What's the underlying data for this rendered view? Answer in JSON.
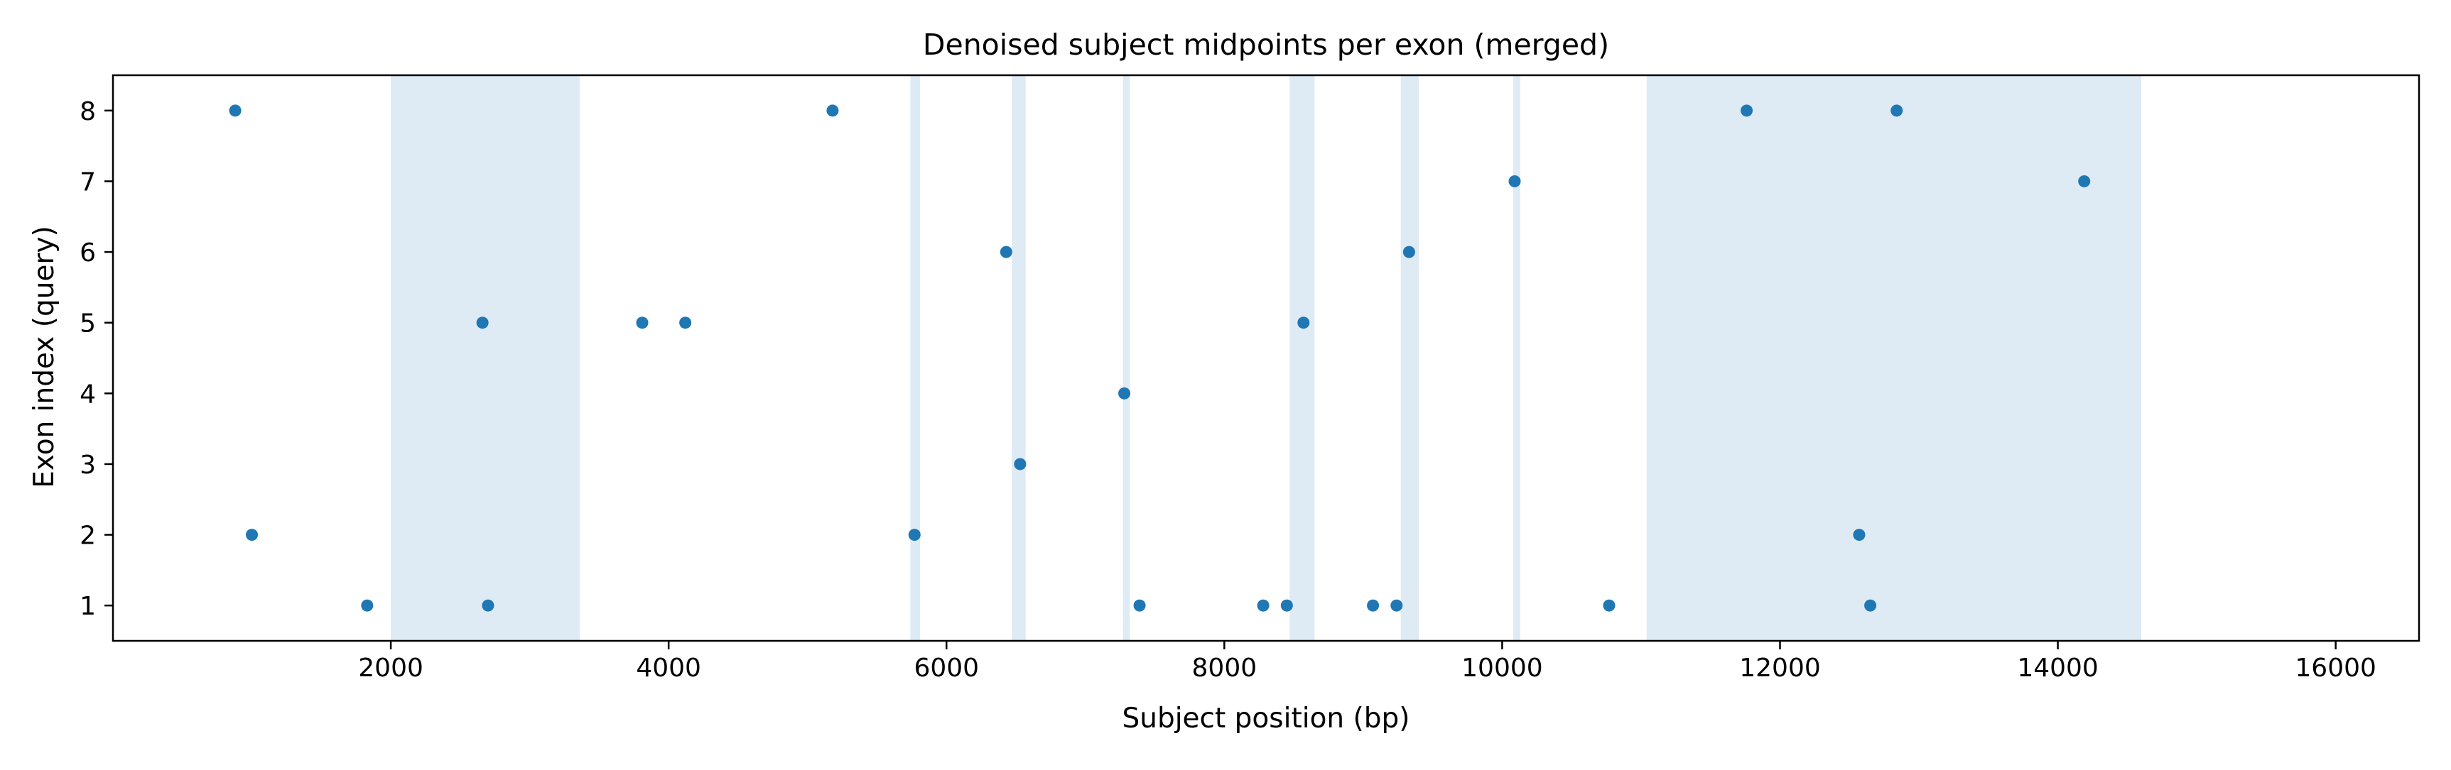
{
  "chart_data": {
    "type": "scatter",
    "title": "Denoised subject midpoints per exon (merged)",
    "xlabel": "Subject position (bp)",
    "ylabel": "Exon index (query)",
    "xlim": [
      0,
      16600
    ],
    "ylim": [
      0.5,
      8.5
    ],
    "xticks": [
      2000,
      4000,
      6000,
      8000,
      10000,
      12000,
      14000,
      16000
    ],
    "yticks": [
      1,
      2,
      3,
      4,
      5,
      6,
      7,
      8
    ],
    "xtick_labels": [
      "2000",
      "4000",
      "6000",
      "8000",
      "10000",
      "12000",
      "14000",
      "16000"
    ],
    "ytick_labels": [
      "1",
      "2",
      "3",
      "4",
      "5",
      "6",
      "7",
      "8"
    ],
    "grid": false,
    "legend": "none",
    "point_color": "#1f77b4",
    "band_color": "#deebf5",
    "shaded_regions": [
      {
        "x0": 2000,
        "x1": 3360
      },
      {
        "x0": 5740,
        "x1": 5810
      },
      {
        "x0": 6470,
        "x1": 6570
      },
      {
        "x0": 7270,
        "x1": 7320
      },
      {
        "x0": 8470,
        "x1": 8650
      },
      {
        "x0": 9270,
        "x1": 9400
      },
      {
        "x0": 10080,
        "x1": 10130
      },
      {
        "x0": 11040,
        "x1": 14600
      }
    ],
    "points": [
      {
        "x": 880,
        "y": 8
      },
      {
        "x": 5180,
        "y": 8
      },
      {
        "x": 11760,
        "y": 8
      },
      {
        "x": 12840,
        "y": 8
      },
      {
        "x": 10090,
        "y": 7
      },
      {
        "x": 14190,
        "y": 7
      },
      {
        "x": 6430,
        "y": 6
      },
      {
        "x": 9330,
        "y": 6
      },
      {
        "x": 2660,
        "y": 5
      },
      {
        "x": 3810,
        "y": 5
      },
      {
        "x": 4120,
        "y": 5
      },
      {
        "x": 8570,
        "y": 5
      },
      {
        "x": 7280,
        "y": 4
      },
      {
        "x": 6530,
        "y": 3
      },
      {
        "x": 1000,
        "y": 2
      },
      {
        "x": 5770,
        "y": 2
      },
      {
        "x": 12570,
        "y": 2
      },
      {
        "x": 1830,
        "y": 1
      },
      {
        "x": 2700,
        "y": 1
      },
      {
        "x": 7390,
        "y": 1
      },
      {
        "x": 8280,
        "y": 1
      },
      {
        "x": 8450,
        "y": 1
      },
      {
        "x": 9070,
        "y": 1
      },
      {
        "x": 9240,
        "y": 1
      },
      {
        "x": 10770,
        "y": 1
      },
      {
        "x": 12650,
        "y": 1
      }
    ]
  }
}
